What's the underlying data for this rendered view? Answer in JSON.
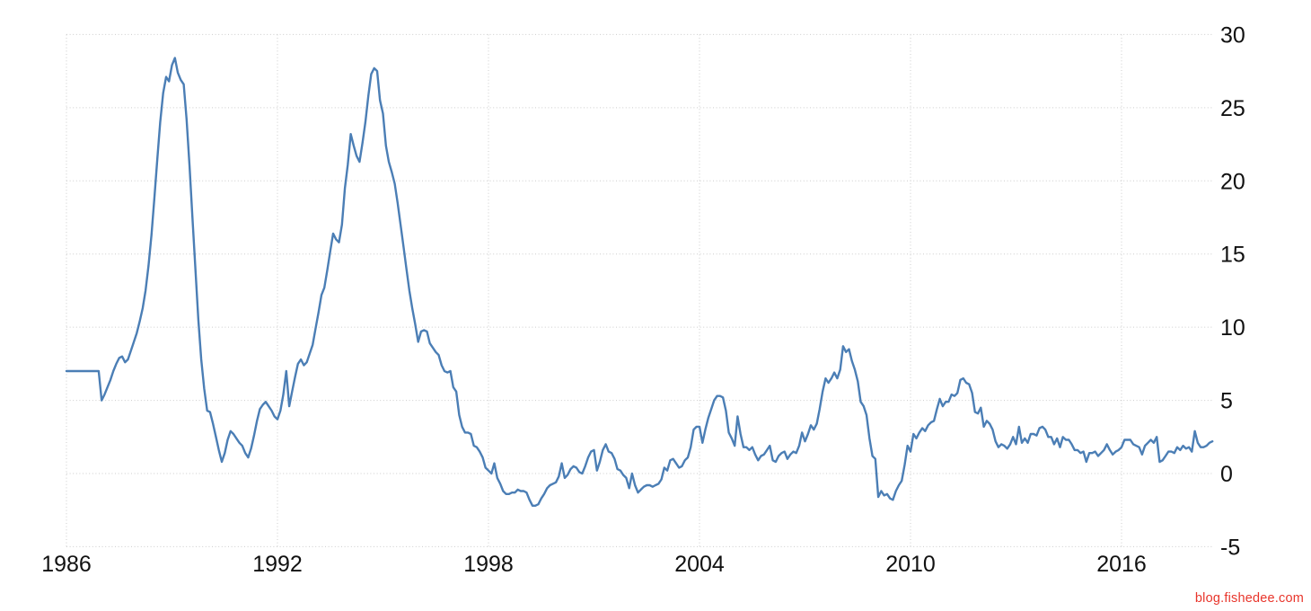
{
  "page": {
    "background": "#ffffff"
  },
  "watermark": {
    "text": "blog.fishedee.com",
    "color": "#e8352b"
  },
  "chart_data": {
    "type": "line",
    "title": "",
    "xlabel": "",
    "ylabel": "",
    "legend": "none",
    "grid": "dotted",
    "line_color": "#4b7eb5",
    "grid_color": "#cccccc",
    "tick_color": "#111111",
    "xlim": [
      1986,
      2018.7
    ],
    "ylim": [
      -5,
      30
    ],
    "x_ticks": [
      1986,
      1992,
      1998,
      2004,
      2010,
      2016
    ],
    "y_ticks": [
      30,
      25,
      20,
      15,
      10,
      5,
      0,
      -5
    ],
    "x_start_year": 1986,
    "x_interval_months": 1,
    "values": [
      7.0,
      7.0,
      7.0,
      7.0,
      7.0,
      7.0,
      7.0,
      7.0,
      7.0,
      7.0,
      7.0,
      7.0,
      5.0,
      5.4,
      5.9,
      6.4,
      7.0,
      7.5,
      7.9,
      8.0,
      7.6,
      7.8,
      8.4,
      9.0,
      9.6,
      10.4,
      11.3,
      12.5,
      14.2,
      16.3,
      18.8,
      21.5,
      24.0,
      26.0,
      27.1,
      26.8,
      27.9,
      28.4,
      27.4,
      26.9,
      26.6,
      24.2,
      21.0,
      17.5,
      14.0,
      10.5,
      7.8,
      5.8,
      4.3,
      4.2,
      3.4,
      2.5,
      1.6,
      0.8,
      1.4,
      2.3,
      2.9,
      2.7,
      2.4,
      2.1,
      1.9,
      1.4,
      1.1,
      1.7,
      2.6,
      3.6,
      4.4,
      4.7,
      4.9,
      4.6,
      4.3,
      3.9,
      3.7,
      4.3,
      5.4,
      7.0,
      4.6,
      5.6,
      6.6,
      7.5,
      7.8,
      7.4,
      7.6,
      8.2,
      8.8,
      9.9,
      11.0,
      12.2,
      12.7,
      13.9,
      15.2,
      16.4,
      16.0,
      15.8,
      17.0,
      19.5,
      21.1,
      23.2,
      22.4,
      21.7,
      21.3,
      22.6,
      24.0,
      25.8,
      27.3,
      27.7,
      27.5,
      25.5,
      24.6,
      22.4,
      21.3,
      20.6,
      19.8,
      18.5,
      17.0,
      15.5,
      14.0,
      12.5,
      11.3,
      10.2,
      9.0,
      9.7,
      9.8,
      9.7,
      8.9,
      8.6,
      8.3,
      8.1,
      7.4,
      7.0,
      6.9,
      7.0,
      5.9,
      5.6,
      4.0,
      3.2,
      2.8,
      2.8,
      2.7,
      1.9,
      1.8,
      1.5,
      1.1,
      0.4,
      0.2,
      0.0,
      0.7,
      -0.3,
      -0.7,
      -1.2,
      -1.4,
      -1.4,
      -1.3,
      -1.3,
      -1.1,
      -1.2,
      -1.2,
      -1.3,
      -1.8,
      -2.2,
      -2.2,
      -2.1,
      -1.7,
      -1.4,
      -1.0,
      -0.8,
      -0.7,
      -0.6,
      -0.2,
      0.7,
      -0.3,
      -0.1,
      0.3,
      0.5,
      0.4,
      0.1,
      0.0,
      0.5,
      1.1,
      1.5,
      1.6,
      0.2,
      0.8,
      1.6,
      2.0,
      1.5,
      1.4,
      1.0,
      0.3,
      0.2,
      -0.1,
      -0.3,
      -1.0,
      0.0,
      -0.8,
      -1.3,
      -1.1,
      -0.9,
      -0.8,
      -0.8,
      -0.9,
      -0.8,
      -0.7,
      -0.4,
      0.4,
      0.2,
      0.9,
      1.0,
      0.7,
      0.4,
      0.5,
      0.9,
      1.1,
      1.8,
      3.0,
      3.2,
      3.2,
      2.1,
      3.0,
      3.8,
      4.4,
      5.0,
      5.3,
      5.3,
      5.2,
      4.3,
      2.8,
      2.4,
      1.9,
      3.9,
      2.7,
      1.8,
      1.8,
      1.6,
      1.8,
      1.3,
      0.9,
      1.2,
      1.3,
      1.6,
      1.9,
      0.9,
      0.8,
      1.2,
      1.4,
      1.5,
      1.0,
      1.3,
      1.5,
      1.4,
      1.9,
      2.8,
      2.2,
      2.7,
      3.3,
      3.0,
      3.4,
      4.4,
      5.6,
      6.5,
      6.2,
      6.5,
      6.9,
      6.5,
      7.1,
      8.7,
      8.3,
      8.5,
      7.7,
      7.1,
      6.3,
      4.9,
      4.6,
      4.0,
      2.4,
      1.2,
      1.0,
      -1.6,
      -1.2,
      -1.5,
      -1.4,
      -1.7,
      -1.8,
      -1.2,
      -0.8,
      -0.5,
      0.6,
      1.9,
      1.5,
      2.7,
      2.4,
      2.8,
      3.1,
      2.9,
      3.3,
      3.5,
      3.6,
      4.4,
      5.1,
      4.6,
      4.9,
      4.9,
      5.4,
      5.3,
      5.5,
      6.4,
      6.5,
      6.2,
      6.1,
      5.5,
      4.2,
      4.1,
      4.5,
      3.2,
      3.6,
      3.4,
      3.0,
      2.2,
      1.8,
      2.0,
      1.9,
      1.7,
      2.0,
      2.5,
      2.0,
      3.2,
      2.1,
      2.4,
      2.1,
      2.7,
      2.7,
      2.6,
      3.1,
      3.2,
      3.0,
      2.5,
      2.5,
      2.0,
      2.4,
      1.8,
      2.5,
      2.3,
      2.3,
      2.0,
      1.6,
      1.6,
      1.4,
      1.5,
      0.8,
      1.4,
      1.4,
      1.5,
      1.2,
      1.4,
      1.6,
      2.0,
      1.6,
      1.3,
      1.5,
      1.6,
      1.8,
      2.3,
      2.3,
      2.3,
      2.0,
      1.9,
      1.8,
      1.3,
      1.9,
      2.1,
      2.3,
      2.1,
      2.5,
      0.8,
      0.9,
      1.2,
      1.5,
      1.5,
      1.4,
      1.8,
      1.6,
      1.9,
      1.7,
      1.8,
      1.5,
      2.9,
      2.1,
      1.8,
      1.8,
      1.9,
      2.1,
      2.2
    ]
  }
}
